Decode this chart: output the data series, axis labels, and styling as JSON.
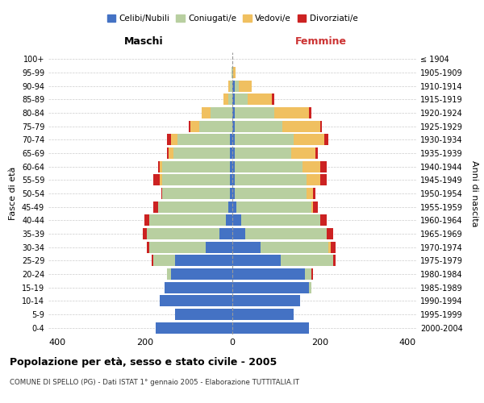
{
  "age_groups": [
    "0-4",
    "5-9",
    "10-14",
    "15-19",
    "20-24",
    "25-29",
    "30-34",
    "35-39",
    "40-44",
    "45-49",
    "50-54",
    "55-59",
    "60-64",
    "65-69",
    "70-74",
    "75-79",
    "80-84",
    "85-89",
    "90-94",
    "95-99",
    "100+"
  ],
  "birth_years": [
    "2000-2004",
    "1995-1999",
    "1990-1994",
    "1985-1989",
    "1980-1984",
    "1975-1979",
    "1970-1974",
    "1965-1969",
    "1960-1964",
    "1955-1959",
    "1950-1954",
    "1945-1949",
    "1940-1944",
    "1935-1939",
    "1930-1934",
    "1925-1929",
    "1920-1924",
    "1915-1919",
    "1910-1914",
    "1905-1909",
    "≤ 1904"
  ],
  "males": {
    "celibi": [
      175,
      130,
      165,
      155,
      140,
      130,
      60,
      30,
      15,
      10,
      5,
      5,
      5,
      5,
      5,
      0,
      0,
      0,
      0,
      0,
      0
    ],
    "coniugati": [
      0,
      0,
      0,
      0,
      10,
      50,
      130,
      165,
      175,
      160,
      155,
      155,
      155,
      130,
      120,
      75,
      50,
      10,
      5,
      2,
      0
    ],
    "vedovi": [
      0,
      0,
      0,
      0,
      0,
      0,
      0,
      0,
      0,
      0,
      0,
      5,
      5,
      10,
      15,
      20,
      20,
      10,
      5,
      0,
      0
    ],
    "divorziati": [
      0,
      0,
      0,
      0,
      0,
      5,
      5,
      10,
      10,
      10,
      2,
      15,
      5,
      5,
      10,
      5,
      0,
      0,
      0,
      0,
      0
    ]
  },
  "females": {
    "nubili": [
      175,
      140,
      155,
      175,
      165,
      110,
      65,
      30,
      20,
      10,
      5,
      5,
      5,
      5,
      5,
      5,
      5,
      5,
      5,
      0,
      0
    ],
    "coniugate": [
      0,
      0,
      0,
      5,
      15,
      120,
      155,
      185,
      180,
      170,
      165,
      165,
      155,
      130,
      135,
      110,
      90,
      30,
      10,
      2,
      0
    ],
    "vedove": [
      0,
      0,
      0,
      0,
      0,
      0,
      5,
      0,
      0,
      5,
      15,
      30,
      40,
      55,
      70,
      85,
      80,
      55,
      30,
      5,
      0
    ],
    "divorziate": [
      0,
      0,
      0,
      0,
      5,
      5,
      10,
      15,
      15,
      10,
      5,
      15,
      15,
      5,
      10,
      5,
      5,
      5,
      0,
      0,
      0
    ]
  },
  "colors": {
    "celibi": "#4472c4",
    "coniugati": "#b8cfa0",
    "vedovi": "#f0c060",
    "divorziati": "#cc2222"
  },
  "title": "Popolazione per età, sesso e stato civile - 2005",
  "subtitle": "COMUNE DI SPELLO (PG) - Dati ISTAT 1° gennaio 2005 - Elaborazione TUTTITALIA.IT",
  "xlabel_left": "Maschi",
  "xlabel_right": "Femmine",
  "ylabel_left": "Fasce di età",
  "ylabel_right": "Anni di nascita",
  "xlim": 420,
  "legend_labels": [
    "Celibi/Nubili",
    "Coniugati/e",
    "Vedovi/e",
    "Divorziati/e"
  ],
  "bg_color": "#ffffff",
  "grid_color": "#cccccc"
}
